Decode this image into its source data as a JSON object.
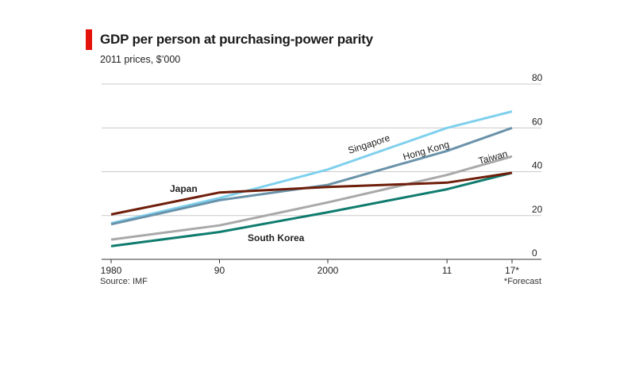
{
  "header": {
    "title": "GDP per person at purchasing-power parity",
    "subtitle": "2011 prices, $’000",
    "accent_color": "#e3120b"
  },
  "footer": {
    "source": "Source: IMF",
    "note": "*Forecast"
  },
  "chart_data": {
    "type": "line",
    "title": "GDP per person at purchasing-power parity",
    "subtitle": "2011 prices, $’000",
    "xlim": [
      1980,
      2017
    ],
    "ylim": [
      0,
      80
    ],
    "x_ticks": [
      {
        "value": 1980,
        "label": "1980"
      },
      {
        "value": 1990,
        "label": "90"
      },
      {
        "value": 2000,
        "label": "2000"
      },
      {
        "value": 2011,
        "label": "11"
      },
      {
        "value": 2017,
        "label": "17*"
      }
    ],
    "y_ticks": [
      0,
      20,
      40,
      60,
      80
    ],
    "y_axis_side": "right",
    "grid": true,
    "series": [
      {
        "name": "Singapore",
        "color": "#7fd0ee",
        "x": [
          1980,
          1990,
          2000,
          2011,
          2017
        ],
        "y": [
          16.5,
          28,
          41,
          60,
          67.5
        ]
      },
      {
        "name": "Hong Kong",
        "color": "#6a93aa",
        "x": [
          1980,
          1990,
          2000,
          2011,
          2017
        ],
        "y": [
          16,
          27,
          34,
          49.5,
          60
        ]
      },
      {
        "name": "Taiwan",
        "color": "#a9a9a9",
        "x": [
          1980,
          1990,
          2000,
          2011,
          2017
        ],
        "y": [
          9,
          15.5,
          26,
          38.5,
          47
        ]
      },
      {
        "name": "Japan",
        "color": "#6e1e0a",
        "x": [
          1980,
          1990,
          2000,
          2011,
          2017
        ],
        "y": [
          20.5,
          30.5,
          33,
          35,
          39.5
        ]
      },
      {
        "name": "South Korea",
        "color": "#0f7c6e",
        "x": [
          1980,
          1990,
          2000,
          2011,
          2017
        ],
        "y": [
          6,
          12.5,
          21.5,
          32,
          39.5
        ]
      }
    ]
  }
}
